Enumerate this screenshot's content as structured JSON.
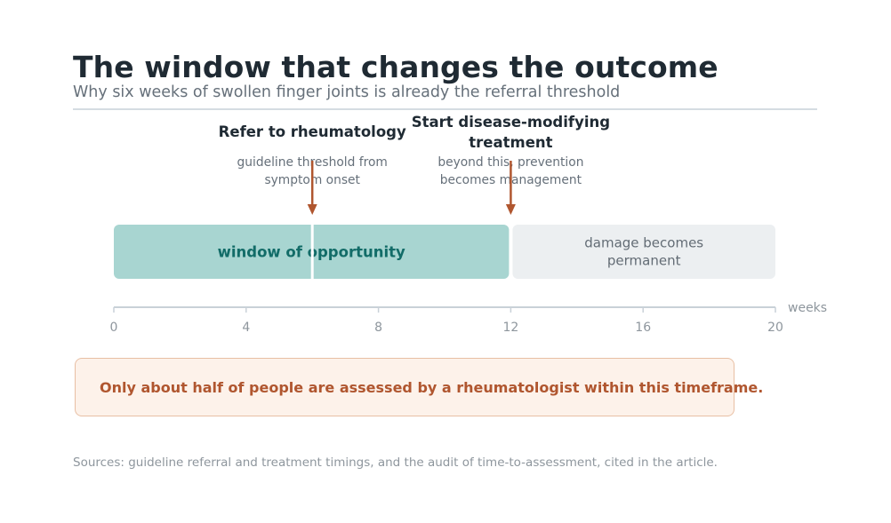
{
  "header": {
    "title": "The window that changes the outcome",
    "subtitle": "Why six weeks of swollen finger joints is already the referral threshold"
  },
  "timeline": {
    "axis_unit": "weeks",
    "axis_min": 0,
    "axis_max": 20,
    "ticks": [
      0,
      4,
      8,
      12,
      16,
      20
    ],
    "segments": [
      {
        "label": "window of opportunity",
        "start": 0,
        "end": 12,
        "color": "#a8d5d1",
        "text_color": "#126c68"
      },
      {
        "label_lines": [
          "damage becomes",
          "permanent"
        ],
        "start": 12,
        "end": 20,
        "color": "#eceff1",
        "text_color": "#636c75"
      }
    ],
    "markers": [
      {
        "week": 6,
        "title_lines": [
          "Refer to rheumatology"
        ],
        "note_lines": [
          "guideline threshold from",
          "symptom onset"
        ]
      },
      {
        "week": 12,
        "title_lines": [
          "Start disease-modifying",
          "treatment"
        ],
        "note_lines": [
          "beyond this, prevention",
          "becomes management"
        ]
      }
    ],
    "colors": {
      "arrow": "#b0562f",
      "axis": "#c9d1d8",
      "tick_label": "#8e969d",
      "title": "#1f2a33",
      "note": "#66707a"
    }
  },
  "callout": {
    "text": "Only about half of people are assessed by a rheumatologist within this timeframe."
  },
  "footer": {
    "sources": "Sources: guideline referral and treatment timings, and the audit of time-to-assessment, cited in the article."
  }
}
